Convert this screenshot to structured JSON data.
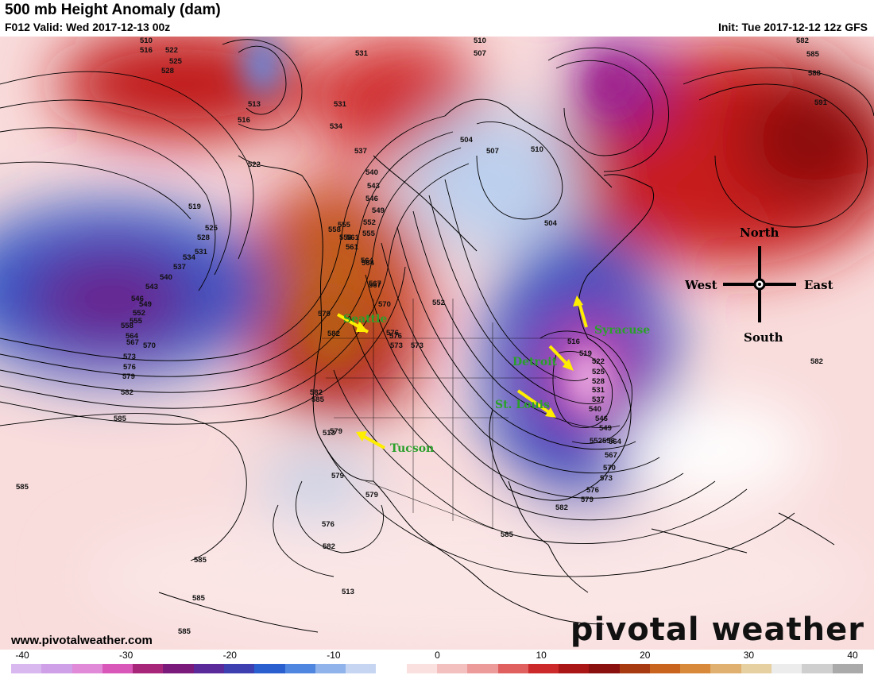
{
  "header": {
    "title": "500 mb Height Anomaly (dam)",
    "valid": "F012 Valid: Wed 2017-12-13 00z",
    "init": "Init: Tue 2017-12-12 12z GFS"
  },
  "footer": {
    "website": "www.pivotalweather.com",
    "logo": "pivotal weather"
  },
  "colorbar": {
    "ticks": [
      "-40",
      "-30",
      "-20",
      "-10",
      "0",
      "10",
      "20",
      "30",
      "40"
    ],
    "colors": [
      "#d9b8f0",
      "#cf9fe8",
      "#e08ad8",
      "#d957b8",
      "#a8267a",
      "#7a1a7a",
      "#5a2a9a",
      "#3d3fb0",
      "#2a5fd0",
      "#4f86e0",
      "#8fb3ea",
      "#c6d6f2",
      "#ffffff",
      "#fbe0e0",
      "#f4bfbf",
      "#ec9a9a",
      "#e06060",
      "#cc2a2a",
      "#aa1515",
      "#8a1010",
      "#a83a12",
      "#c8641e",
      "#d88a3a",
      "#e0b070",
      "#e6cfa0",
      "#ececec",
      "#cfcfcf",
      "#aaaaaa"
    ]
  },
  "cities": [
    {
      "name": "Seattle"
    },
    {
      "name": "Tucson"
    },
    {
      "name": "Detroit"
    },
    {
      "name": "St. Louis"
    },
    {
      "name": "Syracuse"
    }
  ],
  "compass": {
    "north": "North",
    "south": "South",
    "east": "East",
    "west": "West"
  },
  "contour_labels": [
    "510",
    "516",
    "522",
    "525",
    "528",
    "513",
    "516",
    "522",
    "531",
    "531",
    "534",
    "537",
    "540",
    "543",
    "546",
    "549",
    "552",
    "555",
    "558",
    "561",
    "564",
    "567",
    "570",
    "573",
    "576",
    "579",
    "582",
    "585",
    "513",
    "510",
    "507",
    "504",
    "507",
    "510",
    "504",
    "582",
    "585",
    "588",
    "591",
    "519",
    "525",
    "528",
    "531",
    "534",
    "537",
    "540",
    "543",
    "546",
    "549",
    "552",
    "555",
    "558",
    "564",
    "567",
    "570",
    "573",
    "576",
    "579",
    "582",
    "585",
    "555",
    "558",
    "561",
    "564",
    "567",
    "552",
    "576",
    "573",
    "582",
    "579",
    "582",
    "585",
    "579",
    "576",
    "579",
    "582",
    "585",
    "585",
    "585",
    "513",
    "516",
    "519",
    "522",
    "525",
    "528",
    "531",
    "537",
    "540",
    "546",
    "549",
    "552",
    "558",
    "564",
    "567",
    "570",
    "573",
    "576",
    "579",
    "582",
    "585",
    "585"
  ],
  "colors": {
    "arrow": "#ffee00",
    "city_label": "#2aa02a"
  }
}
